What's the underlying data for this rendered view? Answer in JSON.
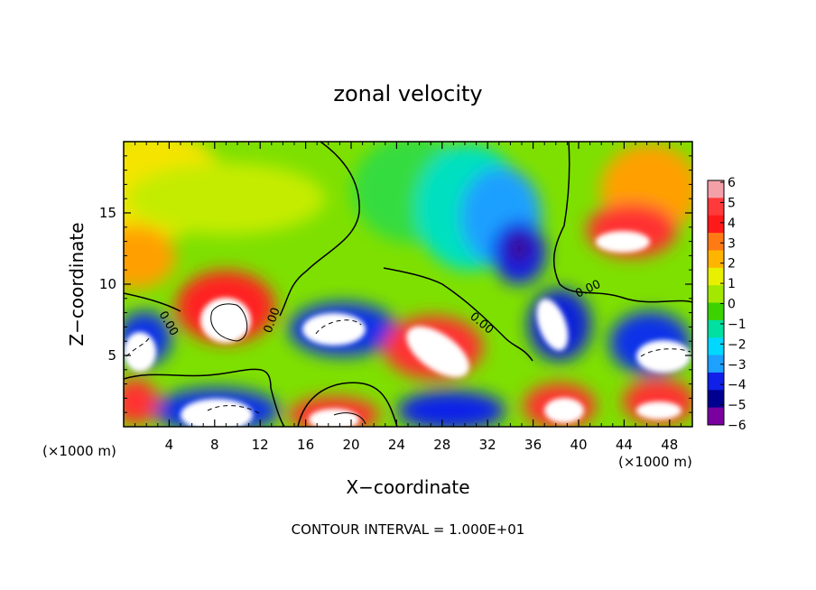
{
  "chart_data": {
    "type": "heatmap",
    "title": "zonal velocity",
    "xlabel": "X−coordinate",
    "ylabel": "Z−coordinate",
    "x_unit": "(×1000 m)",
    "y_unit": "(×1000 m)",
    "footer": "CONTOUR INTERVAL = 1.000E+01",
    "xlim": [
      0,
      50
    ],
    "ylim": [
      0,
      20
    ],
    "x_ticks": [
      4,
      8,
      12,
      16,
      20,
      24,
      28,
      32,
      36,
      40,
      44,
      48
    ],
    "y_ticks": [
      5,
      10,
      15
    ],
    "colorbar": {
      "ticks": [
        "6",
        "5",
        "4",
        "3",
        "2",
        "1",
        "0",
        "−1",
        "−2",
        "−3",
        "−4",
        "−5",
        "−6"
      ],
      "colors": [
        "#f4a0a8",
        "#ff3a3a",
        "#ff1a1a",
        "#ff7a14",
        "#ffb400",
        "#e8f000",
        "#a4e800",
        "#3cd200",
        "#00e0a0",
        "#00d8ff",
        "#1ea0ff",
        "#1020e8",
        "#000090",
        "#7a00a0"
      ]
    },
    "contour_labels": [
      "0.00",
      "0.00",
      "0.00",
      "0.00"
    ]
  }
}
